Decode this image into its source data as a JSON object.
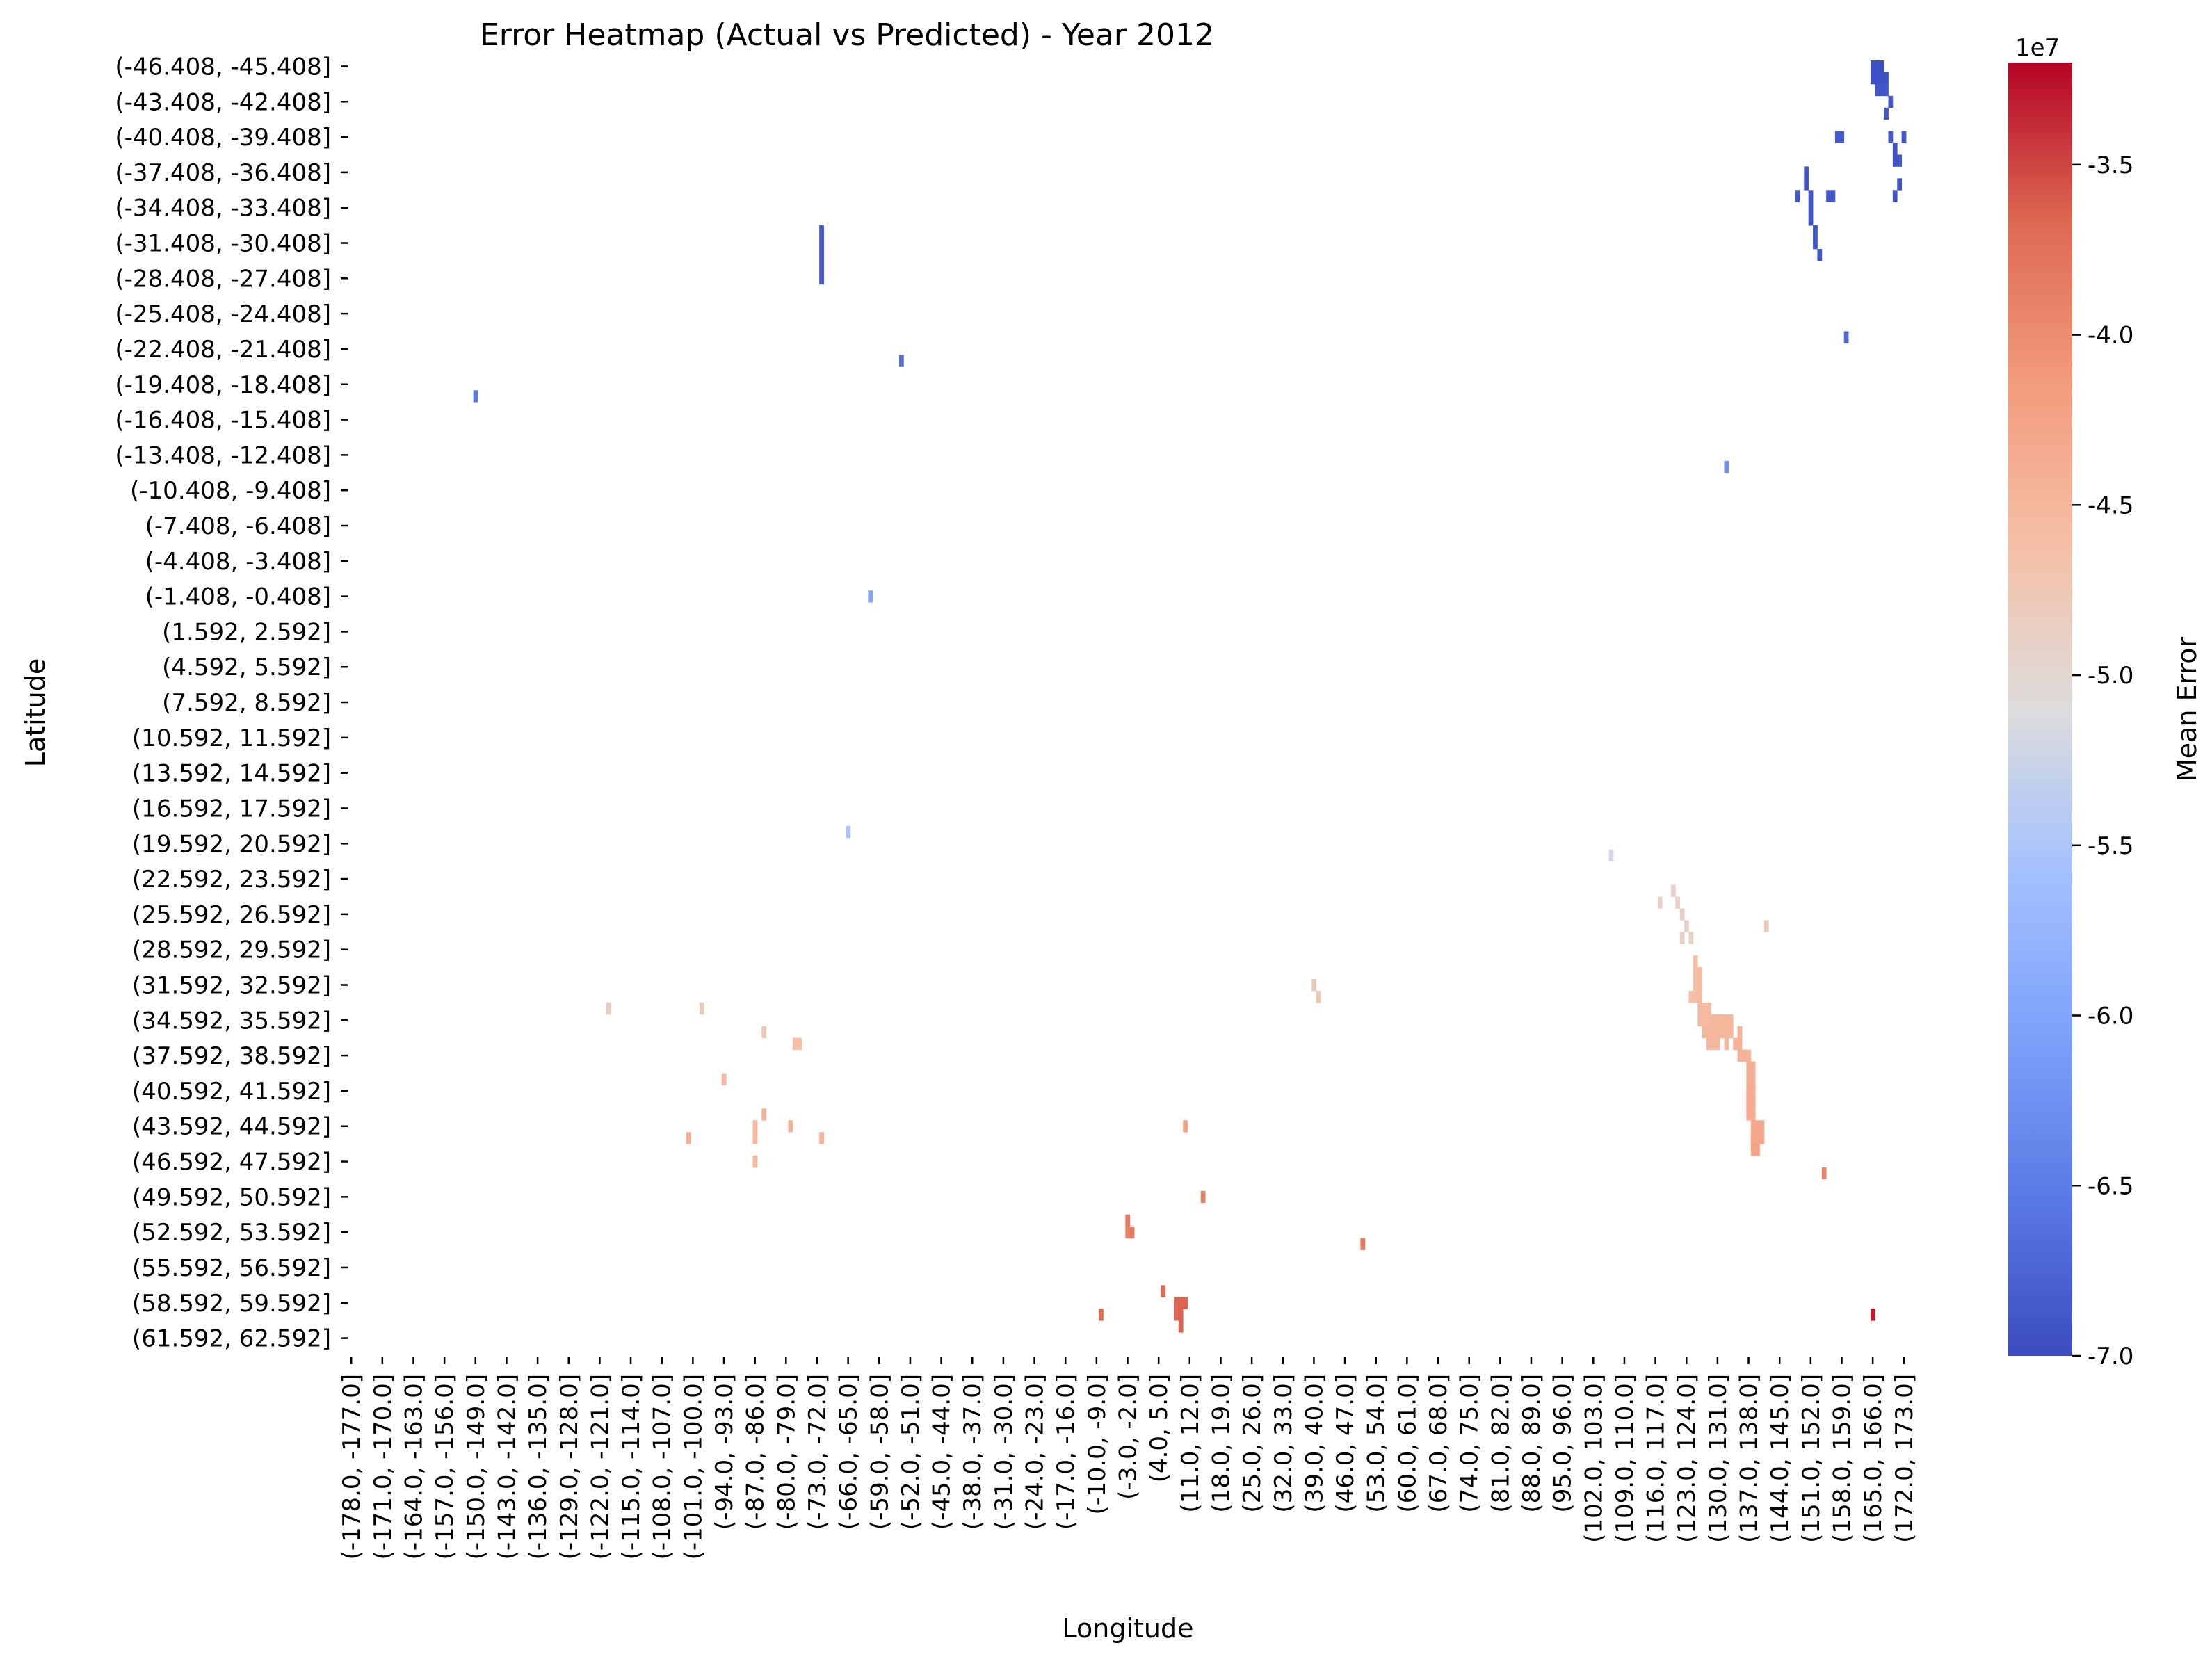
{
  "chart_data": {
    "type": "heatmap",
    "title": "Error Heatmap (Actual vs Predicted) - Year 2012",
    "xlabel": "Longitude",
    "ylabel": "Latitude",
    "colorbar": {
      "label": "Mean Error",
      "multiplier": "1e7",
      "range": [
        -7.0,
        -3.2
      ],
      "ticks": [
        "-3.5",
        "-4.0",
        "-4.5",
        "-5.0",
        "-5.5",
        "-6.0",
        "-6.5",
        "-7.0"
      ],
      "tick_values": [
        -3.5,
        -4.0,
        -4.5,
        -5.0,
        -5.5,
        -6.0,
        -6.5,
        -7.0
      ],
      "colormap": "coolwarm"
    },
    "lat_start": -46.408,
    "lat_count": 110,
    "lon_start": -178.0,
    "lon_count": 351,
    "y_tick_labels": [
      "(-46.408, -45.408]",
      "(-43.408, -42.408]",
      "(-40.408, -39.408]",
      "(-37.408, -36.408]",
      "(-34.408, -33.408]",
      "(-31.408, -30.408]",
      "(-28.408, -27.408]",
      "(-25.408, -24.408]",
      "(-22.408, -21.408]",
      "(-19.408, -18.408]",
      "(-16.408, -15.408]",
      "(-13.408, -12.408]",
      "(-10.408, -9.408]",
      "(-7.408, -6.408]",
      "(-4.408, -3.408]",
      "(-1.408, -0.408]",
      "(1.592, 2.592]",
      "(4.592, 5.592]",
      "(7.592, 8.592]",
      "(10.592, 11.592]",
      "(13.592, 14.592]",
      "(16.592, 17.592]",
      "(19.592, 20.592]",
      "(22.592, 23.592]",
      "(25.592, 26.592]",
      "(28.592, 29.592]",
      "(31.592, 32.592]",
      "(34.592, 35.592]",
      "(37.592, 38.592]",
      "(40.592, 41.592]",
      "(43.592, 44.592]",
      "(46.592, 47.592]",
      "(49.592, 50.592]",
      "(52.592, 53.592]",
      "(55.592, 56.592]",
      "(58.592, 59.592]",
      "(61.592, 62.592]"
    ],
    "x_tick_labels": [
      "(-178.0, -177.0]",
      "(-171.0, -170.0]",
      "(-164.0, -163.0]",
      "(-157.0, -156.0]",
      "(-150.0, -149.0]",
      "(-143.0, -142.0]",
      "(-136.0, -135.0]",
      "(-129.0, -128.0]",
      "(-122.0, -121.0]",
      "(-115.0, -114.0]",
      "(-108.0, -107.0]",
      "(-101.0, -100.0]",
      "(-94.0, -93.0]",
      "(-87.0, -86.0]",
      "(-80.0, -79.0]",
      "(-73.0, -72.0]",
      "(-66.0, -65.0]",
      "(-59.0, -58.0]",
      "(-52.0, -51.0]",
      "(-45.0, -44.0]",
      "(-38.0, -37.0]",
      "(-31.0, -30.0]",
      "(-24.0, -23.0]",
      "(-17.0, -16.0]",
      "(-10.0, -9.0]",
      "(-3.0, -2.0]",
      "(4.0, 5.0]",
      "(11.0, 12.0]",
      "(18.0, 19.0]",
      "(25.0, 26.0]",
      "(32.0, 33.0]",
      "(39.0, 40.0]",
      "(46.0, 47.0]",
      "(53.0, 54.0]",
      "(60.0, 61.0]",
      "(67.0, 68.0]",
      "(74.0, 75.0]",
      "(81.0, 82.0]",
      "(88.0, 89.0]",
      "(95.0, 96.0]",
      "(102.0, 103.0]",
      "(109.0, 110.0]",
      "(116.0, 117.0]",
      "(123.0, 124.0]",
      "(130.0, 131.0]",
      "(137.0, 138.0]",
      "(144.0, 145.0]",
      "(151.0, 152.0]",
      "(158.0, 159.0]",
      "(165.0, 166.0]",
      "(172.0, 173.0]"
    ],
    "cells_note": "Approximate non-empty cells [lon_lower, lat_lower, mean_error_x1e7, lon_cells, lat_cells]; all other cells are empty (NaN).",
    "cells": [
      [
        165.0,
        -46.408,
        -6.95,
        3,
        1
      ],
      [
        165.0,
        -45.408,
        -6.95,
        4,
        1
      ],
      [
        166.0,
        -44.408,
        -6.9,
        2,
        1
      ],
      [
        168.0,
        -44.408,
        -6.9,
        1,
        1
      ],
      [
        169.0,
        -43.408,
        -6.9,
        1,
        1
      ],
      [
        168.0,
        -42.408,
        -6.9,
        1,
        1
      ],
      [
        157.0,
        -40.408,
        -6.85,
        2,
        1
      ],
      [
        169.0,
        -40.408,
        -6.85,
        1,
        1
      ],
      [
        172.0,
        -40.408,
        -6.9,
        1,
        1
      ],
      [
        170.0,
        -39.408,
        -6.9,
        1,
        1
      ],
      [
        170.0,
        -38.408,
        -6.9,
        2,
        1
      ],
      [
        150.0,
        -37.408,
        -6.9,
        1,
        1
      ],
      [
        150.0,
        -36.408,
        -6.9,
        1,
        1
      ],
      [
        171.0,
        -36.408,
        -6.9,
        1,
        1
      ],
      [
        148.0,
        -35.408,
        -6.9,
        1,
        1
      ],
      [
        151.0,
        -35.408,
        -6.9,
        1,
        1
      ],
      [
        155.0,
        -35.408,
        -6.9,
        1,
        1
      ],
      [
        156.0,
        -35.408,
        -6.9,
        1,
        1
      ],
      [
        170.0,
        -35.408,
        -6.9,
        1,
        1
      ],
      [
        151.0,
        -34.408,
        -6.9,
        1,
        1
      ],
      [
        151.0,
        -33.408,
        -6.9,
        1,
        1
      ],
      [
        152.0,
        -32.408,
        -6.9,
        1,
        1
      ],
      [
        152.0,
        -31.408,
        -6.9,
        1,
        1
      ],
      [
        153.0,
        -30.408,
        -6.9,
        1,
        1
      ],
      [
        -72.0,
        -32.408,
        -6.9,
        1,
        5
      ],
      [
        159.0,
        -23.408,
        -6.7,
        1,
        1
      ],
      [
        -54.0,
        -21.408,
        -6.6,
        1,
        1
      ],
      [
        -150.0,
        -18.408,
        -6.5,
        1,
        1
      ],
      [
        132.0,
        -12.408,
        -6.2,
        1,
        1
      ],
      [
        -61.0,
        -1.408,
        -6.0,
        1,
        1
      ],
      [
        -66.0,
        18.592,
        -5.5,
        1,
        1
      ],
      [
        106.0,
        20.592,
        -5.2,
        1,
        1
      ],
      [
        117.0,
        24.592,
        -4.9,
        1,
        1
      ],
      [
        120.0,
        23.592,
        -4.9,
        1,
        1
      ],
      [
        121.0,
        24.592,
        -4.9,
        1,
        1
      ],
      [
        122.0,
        25.592,
        -4.9,
        1,
        1
      ],
      [
        123.0,
        26.592,
        -4.9,
        1,
        1
      ],
      [
        122.0,
        27.592,
        -4.9,
        1,
        1
      ],
      [
        124.0,
        27.592,
        -4.9,
        1,
        1
      ],
      [
        141.0,
        26.592,
        -4.8,
        1,
        1
      ],
      [
        125.0,
        29.592,
        -4.6,
        1,
        4
      ],
      [
        126.0,
        30.592,
        -4.55,
        1,
        3
      ],
      [
        124.0,
        32.592,
        -4.6,
        1,
        1
      ],
      [
        126.0,
        33.592,
        -4.55,
        3,
        2
      ],
      [
        129.0,
        34.592,
        -4.5,
        5,
        1
      ],
      [
        127.0,
        35.592,
        -4.5,
        4,
        1
      ],
      [
        131.0,
        35.592,
        -4.5,
        3,
        1
      ],
      [
        128.0,
        36.592,
        -4.5,
        3,
        1
      ],
      [
        132.0,
        36.592,
        -4.5,
        1,
        1
      ],
      [
        134.0,
        36.592,
        -4.45,
        1,
        1
      ],
      [
        135.0,
        35.592,
        -4.45,
        1,
        3
      ],
      [
        136.0,
        37.592,
        -4.45,
        2,
        1
      ],
      [
        137.0,
        38.592,
        -4.4,
        2,
        2
      ],
      [
        137.0,
        40.592,
        -4.35,
        2,
        3
      ],
      [
        138.0,
        43.592,
        -4.3,
        3,
        2
      ],
      [
        138.0,
        45.592,
        -4.25,
        2,
        1
      ],
      [
        39.0,
        31.592,
        -4.8,
        1,
        1
      ],
      [
        40.0,
        32.592,
        -4.75,
        1,
        1
      ],
      [
        -120.0,
        33.592,
        -4.85,
        1,
        1
      ],
      [
        -99.0,
        33.592,
        -4.8,
        1,
        1
      ],
      [
        -85.0,
        35.592,
        -4.75,
        1,
        1
      ],
      [
        -78.0,
        36.592,
        -4.6,
        2,
        1
      ],
      [
        -94.0,
        39.592,
        -4.55,
        1,
        1
      ],
      [
        -85.0,
        42.592,
        -4.45,
        1,
        1
      ],
      [
        -87.0,
        43.592,
        -4.5,
        1,
        1
      ],
      [
        -79.0,
        43.592,
        -4.45,
        1,
        1
      ],
      [
        -102.0,
        44.592,
        -4.4,
        1,
        1
      ],
      [
        -87.0,
        44.592,
        -4.5,
        1,
        1
      ],
      [
        -72.0,
        44.592,
        -4.45,
        1,
        1
      ],
      [
        -87.0,
        46.592,
        -4.5,
        1,
        1
      ],
      [
        10.0,
        43.592,
        -4.2,
        1,
        1
      ],
      [
        154.0,
        47.592,
        -3.95,
        1,
        1
      ],
      [
        14.0,
        49.592,
        -3.9,
        1,
        1
      ],
      [
        -3.0,
        51.592,
        -3.85,
        1,
        1
      ],
      [
        -2.0,
        52.592,
        -3.85,
        1,
        1
      ],
      [
        -3.0,
        52.592,
        -3.9,
        1,
        1
      ],
      [
        50.0,
        53.592,
        -3.8,
        1,
        1
      ],
      [
        5.0,
        57.592,
        -3.7,
        1,
        1
      ],
      [
        8.0,
        58.592,
        -3.65,
        3,
        1
      ],
      [
        8.0,
        59.592,
        -3.65,
        2,
        1
      ],
      [
        -9.0,
        59.592,
        -3.7,
        1,
        1
      ],
      [
        9.0,
        60.592,
        -3.65,
        1,
        1
      ],
      [
        165.0,
        59.592,
        -3.3,
        1,
        1
      ]
    ]
  }
}
